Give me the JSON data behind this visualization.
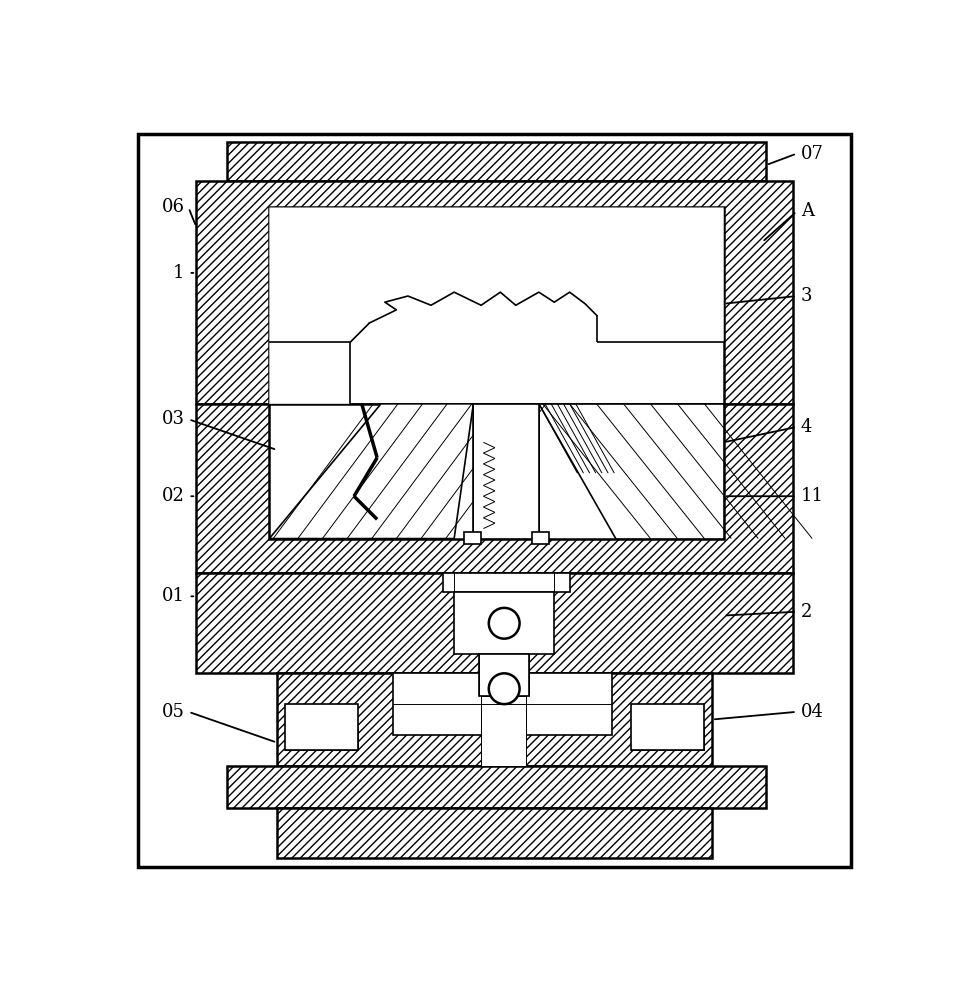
{
  "bg_color": "#ffffff",
  "lw_main": 1.8,
  "lw_med": 1.2,
  "lw_thin": 0.7,
  "label_fs": 13,
  "fig_w": 9.65,
  "fig_h": 9.91,
  "hatch_density": "////"
}
